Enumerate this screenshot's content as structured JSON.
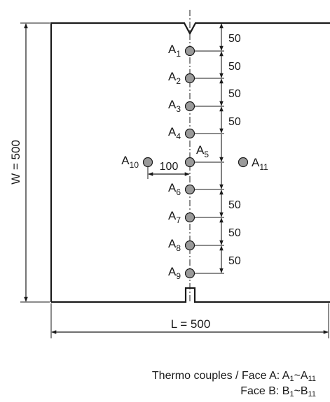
{
  "thermocouples": [
    {
      "id": "A1",
      "letter": "A",
      "index": "1"
    },
    {
      "id": "A2",
      "letter": "A",
      "index": "2"
    },
    {
      "id": "A3",
      "letter": "A",
      "index": "3"
    },
    {
      "id": "A4",
      "letter": "A",
      "index": "4"
    },
    {
      "id": "A5",
      "letter": "A",
      "index": "5"
    },
    {
      "id": "A6",
      "letter": "A",
      "index": "6"
    },
    {
      "id": "A7",
      "letter": "A",
      "index": "7"
    },
    {
      "id": "A8",
      "letter": "A",
      "index": "8"
    },
    {
      "id": "A9",
      "letter": "A",
      "index": "9"
    },
    {
      "id": "A10",
      "letter": "A",
      "index": "10"
    },
    {
      "id": "A11",
      "letter": "A",
      "index": "11"
    }
  ],
  "spacing_labels": [
    "50",
    "50",
    "50",
    "50",
    "50",
    "50",
    "50"
  ],
  "offset_label": "100",
  "width_label": "W = 500",
  "length_label": "L = 500",
  "caption": {
    "line1_prefix": "Thermo couples / Face A: A",
    "line1_from_sub": "1",
    "line1_sep": "~A",
    "line1_to_sub": "11",
    "line2_prefix": "Face B: B",
    "line2_from_sub": "1",
    "line2_sep": "~B",
    "line2_to_sub": "11"
  },
  "colors": {
    "ink": "#1a1a1a",
    "dot_fill": "#9a9a9a"
  }
}
